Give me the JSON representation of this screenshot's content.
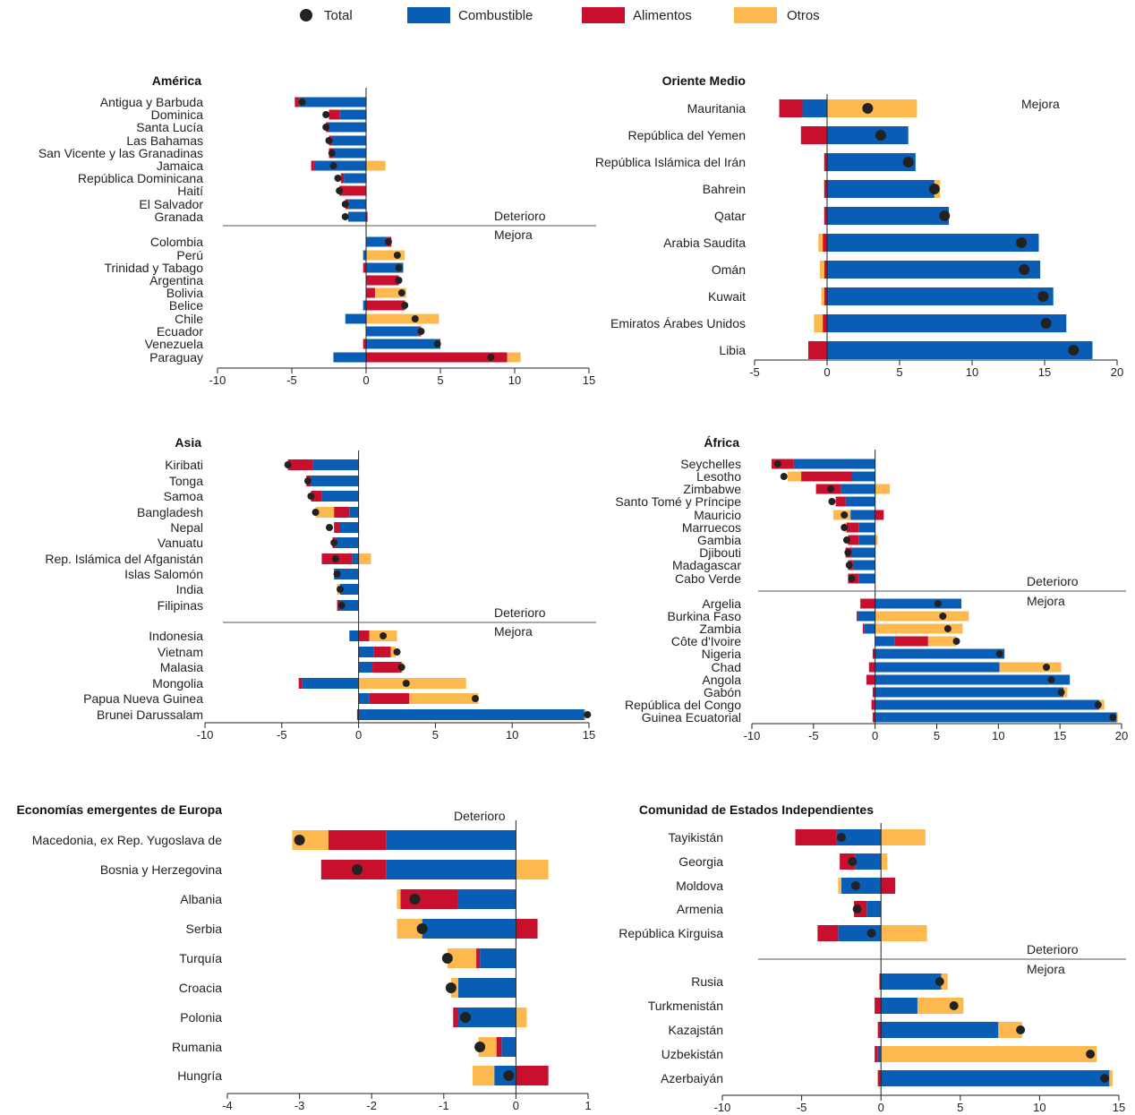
{
  "legend": [
    {
      "label": "Total",
      "marker": "dot",
      "color": "#222222"
    },
    {
      "label": "Combustible",
      "marker": "rect",
      "color": "#0a5db5"
    },
    {
      "label": "Alimentos",
      "marker": "rect",
      "color": "#c8102e"
    },
    {
      "label": "Otros",
      "marker": "rect",
      "color": "#fdb94d"
    }
  ],
  "colors": {
    "fuel": "#0a5db5",
    "food": "#c8102e",
    "other": "#fdb94d",
    "total": "#222222"
  },
  "chart_data": [
    {
      "type": "bar",
      "title": "América",
      "xlim": [
        -10,
        15
      ],
      "ticks": [
        -10,
        -5,
        0,
        5,
        10,
        15
      ],
      "notes": {
        "top": "Deterioro",
        "bottom": "Mejora"
      },
      "separator_after": 10,
      "categories": [
        "Antigua y Barbuda",
        "Dominica",
        "Santa Lucía",
        "Las Bahamas",
        "San Vicente y las Granadinas",
        "Jamaica",
        "República Dominicana",
        "Haití",
        "El Salvador",
        "Granada",
        "Colombia",
        "Perú",
        "Trinidad y Tabago",
        "Argentina",
        "Bolivia",
        "Belice",
        "Chile",
        "Ecuador",
        "Venezuela",
        "Paraguay"
      ],
      "series": [
        {
          "key": "fuel",
          "values": [
            -4.5,
            -1.8,
            -2.5,
            -2.3,
            -2.2,
            -3.5,
            -1.5,
            0,
            -1.2,
            -1.2,
            1.4,
            -0.2,
            2.5,
            0,
            0,
            -0.2,
            -1.4,
            3.5,
            5,
            -2.2
          ]
        },
        {
          "key": "food",
          "values": [
            -0.3,
            -0.7,
            -0.2,
            -0.2,
            -0.3,
            -0.2,
            -0.2,
            -1.8,
            -0.2,
            0.1,
            0.3,
            0,
            -0.2,
            2.2,
            0.6,
            2.6,
            0,
            0.2,
            -0.2,
            9.5
          ]
        },
        {
          "key": "other",
          "values": [
            0,
            0,
            0,
            0,
            0,
            1.3,
            0,
            0,
            0,
            0,
            0,
            2.6,
            0,
            0,
            2.1,
            0.1,
            4.9,
            0,
            0,
            0.9
          ]
        }
      ],
      "totals": [
        -4.3,
        -2.7,
        -2.7,
        -2.5,
        -2.3,
        -2.2,
        -1.9,
        -1.8,
        -1.4,
        -1.4,
        1.5,
        2.1,
        2.2,
        2.2,
        2.4,
        2.6,
        3.3,
        3.7,
        4.8,
        8.4
      ]
    },
    {
      "type": "bar",
      "title": "Oriente Medio",
      "xlim": [
        -5,
        20
      ],
      "ticks": [
        -5,
        0,
        5,
        10,
        15,
        20
      ],
      "notes": {
        "right": "Mejora"
      },
      "separator_after": null,
      "categories": [
        "Mauritania",
        "República del Yemen",
        "República Islámica del Irán",
        "Bahrein",
        "Qatar",
        "Arabia Saudita",
        "Omán",
        "Kuwait",
        "Emiratos Árabes Unidos",
        "Libia"
      ],
      "series": [
        {
          "key": "fuel",
          "values": [
            -1.7,
            5.6,
            6.1,
            7.4,
            8.4,
            14.6,
            14.7,
            15.6,
            16.5,
            18.3
          ]
        },
        {
          "key": "food",
          "values": [
            -1.6,
            -1.8,
            -0.2,
            -0.2,
            -0.2,
            -0.3,
            -0.2,
            -0.2,
            -0.3,
            -1.3
          ]
        },
        {
          "key": "other",
          "values": [
            6.2,
            0,
            0,
            0.4,
            0,
            -0.3,
            -0.3,
            -0.2,
            -0.6,
            0
          ]
        }
      ],
      "totals": [
        2.8,
        3.7,
        5.6,
        7.4,
        8.1,
        13.4,
        13.6,
        14.9,
        15.1,
        17
      ]
    },
    {
      "type": "bar",
      "title": "Asia",
      "xlim": [
        -10,
        15
      ],
      "ticks": [
        -10,
        -5,
        0,
        5,
        10,
        15
      ],
      "notes": {
        "top": "Deterioro",
        "bottom": "Mejora"
      },
      "separator_after": 10,
      "categories": [
        "Kiribati",
        "Tonga",
        "Samoa",
        "Bangladesh",
        "Nepal",
        "Vanuatu",
        "Rep. Islámica del Afganistán",
        "Islas Salomón",
        "India",
        "Filipinas",
        "Indonesia",
        "Vietnam",
        "Malasia",
        "Mongolia",
        "Papua Nueva Guinea",
        "Brunei Darussalam"
      ],
      "series": [
        {
          "key": "fuel",
          "values": [
            -3,
            -3.1,
            -2.4,
            -0.6,
            -1.2,
            -1.5,
            -0.4,
            -1.6,
            -1.2,
            -1.2,
            -0.6,
            1,
            0.9,
            -3.7,
            0.7,
            14.7
          ]
        },
        {
          "key": "food",
          "values": [
            -1.6,
            -0.3,
            -0.7,
            -1,
            -0.4,
            -0.2,
            -2,
            0,
            0,
            -0.2,
            0.7,
            1.1,
            1.9,
            -0.2,
            2.6,
            -0.1
          ]
        },
        {
          "key": "other",
          "values": [
            0,
            0,
            0,
            -1.2,
            0,
            0,
            0.8,
            0,
            -0.2,
            0,
            1.8,
            0.3,
            0.1,
            7,
            4.5,
            0.1
          ]
        }
      ],
      "totals": [
        -4.6,
        -3.3,
        -3.1,
        -2.8,
        -1.9,
        -1.6,
        -1.5,
        -1.4,
        -1.2,
        -1.1,
        1.6,
        2.5,
        2.8,
        3.1,
        7.6,
        14.9
      ]
    },
    {
      "type": "bar",
      "title": "África",
      "xlim": [
        -10,
        20
      ],
      "ticks": [
        -10,
        -5,
        0,
        5,
        10,
        15,
        20
      ],
      "notes": {
        "top": "Deterioro",
        "bottom": "Mejora"
      },
      "separator_after": 10,
      "categories": [
        "Seychelles",
        "Lesotho",
        "Zimbabwe",
        "Santo Tomé y Príncipe",
        "Mauricio",
        "Marruecos",
        "Gambia",
        "Djibouti",
        "Madagascar",
        "Cabo Verde",
        "Argelia",
        "Burkina Faso",
        "Zambia",
        "Côte d'Ivoire",
        "Nigeria",
        "Chad",
        "Angola",
        "Gabón",
        "República del Congo",
        "Guinea Ecuatorial"
      ],
      "series": [
        {
          "key": "fuel",
          "values": [
            -6.6,
            -1.9,
            -2.8,
            -2.4,
            -2,
            -1.3,
            -1.3,
            -1.9,
            -1.8,
            -1.3,
            7,
            -1.4,
            -0.9,
            1.6,
            10.5,
            10.1,
            15.8,
            15.3,
            18.2,
            19.6
          ]
        },
        {
          "key": "food",
          "values": [
            -1.8,
            -4.1,
            -2,
            -0.8,
            0.7,
            -1,
            -0.9,
            -0.5,
            -0.4,
            -0.9,
            -1.2,
            -0.1,
            -0.1,
            2.7,
            -0.2,
            -0.5,
            -0.7,
            -0.2,
            -0.3,
            -0.2
          ]
        },
        {
          "key": "other",
          "values": [
            0,
            -1.1,
            1.2,
            0,
            -1.4,
            -0.2,
            0.2,
            0,
            0,
            0,
            0,
            7.6,
            7.1,
            2.3,
            0,
            5,
            0,
            0.3,
            0.4,
            0.1
          ]
        }
      ],
      "totals": [
        -7.9,
        -7.4,
        -3.6,
        -3.5,
        -2.5,
        -2.5,
        -2.3,
        -2.2,
        -2.1,
        -1.9,
        5.1,
        5.5,
        5.9,
        6.6,
        10.1,
        13.9,
        14.3,
        15.1,
        18.1,
        19.3
      ]
    },
    {
      "type": "bar",
      "title": "Economías emergentes de Europa",
      "xlim": [
        -4,
        1
      ],
      "ticks": [
        -4,
        -3,
        -2,
        -1,
        0,
        1
      ],
      "notes": {
        "top": "Deterioro"
      },
      "separator_after": null,
      "categories": [
        "Macedonia, ex Rep. Yugoslava de",
        "Bosnia y Herzegovina",
        "Albania",
        "Serbia",
        "Turquía",
        "Croacia",
        "Polonia",
        "Rumania",
        "Hungría"
      ],
      "series": [
        {
          "key": "fuel",
          "values": [
            -1.8,
            -1.8,
            -0.8,
            -1.3,
            -0.5,
            -0.8,
            -0.8,
            -0.2,
            -0.3
          ]
        },
        {
          "key": "food",
          "values": [
            -0.8,
            -0.9,
            -0.8,
            0.3,
            -0.05,
            0,
            -0.07,
            -0.07,
            0.45
          ]
        },
        {
          "key": "other",
          "values": [
            -0.5,
            0.45,
            -0.05,
            -0.35,
            -0.4,
            -0.1,
            0.15,
            -0.25,
            -0.3
          ]
        }
      ],
      "totals": [
        -3,
        -2.2,
        -1.4,
        -1.3,
        -0.95,
        -0.9,
        -0.7,
        -0.5,
        -0.1
      ]
    },
    {
      "type": "bar",
      "title": "Comunidad de Estados Independientes",
      "xlim": [
        -10,
        15
      ],
      "ticks": [
        -10,
        -5,
        0,
        5,
        10,
        15
      ],
      "notes": {
        "top": "Deterioro",
        "bottom": "Mejora"
      },
      "separator_after": 5,
      "categories": [
        "Tayikistán",
        "Georgia",
        "Moldova",
        "Armenia",
        "República Kirguisa",
        "Rusia",
        "Turkmenistán",
        "Kazajstán",
        "Uzbekistán",
        "Azerbaiyán"
      ],
      "series": [
        {
          "key": "fuel",
          "values": [
            -2.8,
            -1.6,
            -2.5,
            -0.9,
            -2.7,
            3.8,
            2.3,
            7.4,
            -0.2,
            14.4
          ]
        },
        {
          "key": "food",
          "values": [
            -2.6,
            -1,
            0.9,
            -0.8,
            -1.3,
            -0.1,
            -0.4,
            -0.2,
            -0.2,
            -0.2
          ]
        },
        {
          "key": "other",
          "values": [
            2.8,
            0.4,
            -0.2,
            0,
            2.9,
            0.4,
            2.9,
            1.5,
            13.6,
            0.2
          ]
        }
      ],
      "totals": [
        -2.5,
        -1.8,
        -1.6,
        -1.5,
        -0.6,
        3.7,
        4.6,
        8.8,
        13.2,
        14.1
      ]
    }
  ]
}
